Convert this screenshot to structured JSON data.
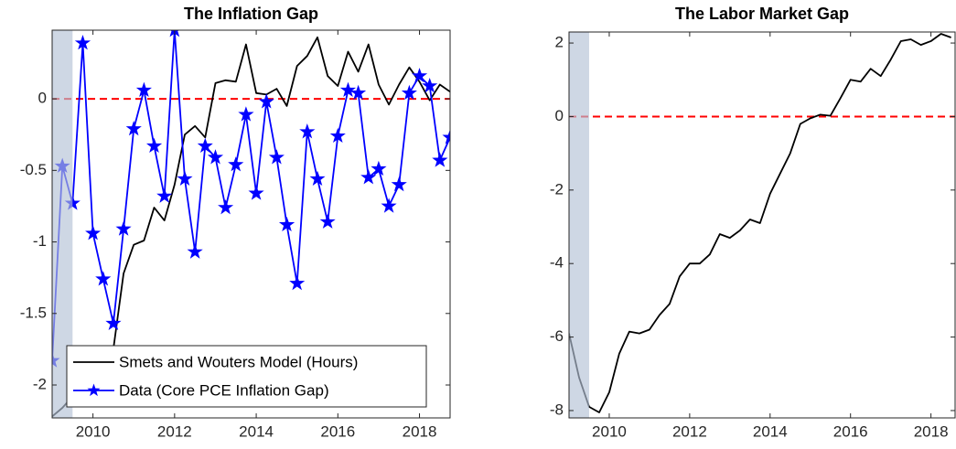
{
  "chart_data": [
    {
      "type": "line",
      "title": "The Inflation Gap",
      "x": [
        2009,
        2009.25,
        2009.5,
        2009.75,
        2010,
        2010.25,
        2010.5,
        2010.75,
        2011,
        2011.25,
        2011.5,
        2011.75,
        2012,
        2012.25,
        2012.5,
        2012.75,
        2013,
        2013.25,
        2013.5,
        2013.75,
        2014,
        2014.25,
        2014.5,
        2014.75,
        2015,
        2015.25,
        2015.5,
        2015.75,
        2016,
        2016.25,
        2016.5,
        2016.75,
        2017,
        2017.25,
        2017.5,
        2017.75,
        2018,
        2018.25,
        2018.5,
        2018.75
      ],
      "series": [
        {
          "name": "Smets and Wouters Model (Hours)",
          "color": "#000000",
          "marker": "none",
          "values": [
            -2.22,
            -2.16,
            -2.08,
            -2.0,
            -1.93,
            -1.85,
            -1.75,
            -1.22,
            -1.02,
            -0.99,
            -0.76,
            -0.85,
            -0.6,
            -0.25,
            -0.19,
            -0.27,
            0.11,
            0.13,
            0.12,
            0.38,
            0.04,
            0.03,
            0.07,
            -0.05,
            0.23,
            0.3,
            0.43,
            0.16,
            0.09,
            0.33,
            0.19,
            0.38,
            0.1,
            -0.04,
            0.1,
            0.22,
            0.12,
            -0.01,
            0.1,
            0.05
          ]
        },
        {
          "name": "Data (Core PCE Inflation Gap)",
          "color": "#0000ff",
          "marker": "star",
          "values": [
            -1.83,
            -0.47,
            -0.73,
            0.39,
            -0.94,
            -1.26,
            -1.57,
            -0.91,
            -0.21,
            0.06,
            -0.33,
            -0.68,
            0.48,
            -0.56,
            -1.07,
            -0.33,
            -0.41,
            -0.76,
            -0.46,
            -0.11,
            -0.66,
            -0.02,
            -0.41,
            -0.88,
            -1.29,
            -0.23,
            -0.56,
            -0.86,
            -0.26,
            0.06,
            0.04,
            -0.55,
            -0.49,
            -0.75,
            -0.6,
            0.04,
            0.16,
            0.09,
            -0.43,
            -0.27
          ]
        }
      ],
      "xlim": [
        2009,
        2018.75
      ],
      "xticks": [
        2010,
        2012,
        2014,
        2016,
        2018
      ],
      "ylim": [
        -2.23,
        0.48
      ],
      "yticks": [
        -2,
        -1.5,
        -1,
        -0.5,
        0
      ],
      "ref_line": 0,
      "ref_color": "#ff0000",
      "shade": [
        2009,
        2009.5
      ],
      "legend": "lower left"
    },
    {
      "type": "line",
      "title": "The Labor Market Gap",
      "x": [
        2009,
        2009.25,
        2009.5,
        2009.75,
        2010,
        2010.25,
        2010.5,
        2010.75,
        2011,
        2011.25,
        2011.5,
        2011.75,
        2012,
        2012.25,
        2012.5,
        2012.75,
        2013,
        2013.25,
        2013.5,
        2013.75,
        2014,
        2014.25,
        2014.5,
        2014.75,
        2015,
        2015.25,
        2015.5,
        2015.75,
        2016,
        2016.25,
        2016.5,
        2016.75,
        2017,
        2017.25,
        2017.5,
        2017.75,
        2018,
        2018.25,
        2018.5
      ],
      "series": [
        {
          "color": "#000000",
          "marker": "none",
          "values": [
            -5.9,
            -7.1,
            -7.9,
            -8.05,
            -7.5,
            -6.45,
            -5.85,
            -5.9,
            -5.8,
            -5.4,
            -5.1,
            -4.35,
            -4.0,
            -4.0,
            -3.75,
            -3.2,
            -3.3,
            -3.1,
            -2.8,
            -2.9,
            -2.1,
            -1.55,
            -1.0,
            -0.2,
            -0.05,
            0.05,
            0.02,
            0.5,
            1.0,
            0.95,
            1.3,
            1.1,
            1.55,
            2.05,
            2.1,
            1.95,
            2.05,
            2.25,
            2.15
          ]
        }
      ],
      "xlim": [
        2009,
        2018.6
      ],
      "xticks": [
        2010,
        2012,
        2014,
        2016,
        2018
      ],
      "ylim": [
        -8.2,
        2.3
      ],
      "yticks": [
        -8,
        -6,
        -4,
        -2,
        0,
        2
      ],
      "ref_line": 0,
      "ref_color": "#ff0000",
      "shade": [
        2009,
        2009.5
      ]
    }
  ]
}
